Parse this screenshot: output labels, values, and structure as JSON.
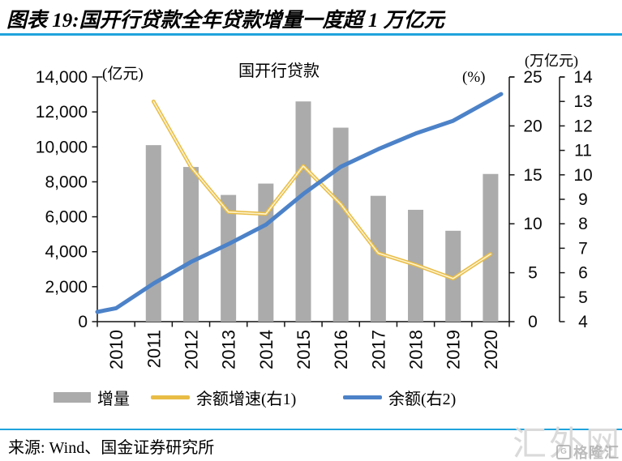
{
  "header": {
    "title": "图表 19:国开行贷款全年贷款增量一度超 1 万亿元"
  },
  "chart_data": {
    "type": "combo-bar-line",
    "title": "国开行贷款",
    "categories": [
      "2010",
      "2011",
      "2012",
      "2013",
      "2014",
      "2015",
      "2016",
      "2017",
      "2018",
      "2019",
      "2020"
    ],
    "series": [
      {
        "name": "增量",
        "type": "bar",
        "axis": "left",
        "unit": "亿元",
        "values": [
          null,
          10100,
          8850,
          7250,
          7900,
          12600,
          11100,
          7200,
          6400,
          5200,
          8450
        ]
      },
      {
        "name": "余额增速(右1)",
        "type": "line",
        "axis": "right1",
        "unit": "%",
        "values": [
          null,
          22.5,
          15.8,
          11.2,
          11.0,
          15.9,
          12.0,
          7.0,
          5.8,
          4.4,
          6.9
        ]
      },
      {
        "name": "余额(右2)",
        "type": "line",
        "axis": "right2",
        "unit": "万亿元",
        "values": [
          4.55,
          5.56,
          6.44,
          7.17,
          7.96,
          9.22,
          10.33,
          11.05,
          11.69,
          12.21,
          13.06
        ]
      }
    ],
    "axes": {
      "left": {
        "label": "(亿元)",
        "min": 0,
        "max": 14000,
        "step": 2000,
        "tick_labels": [
          "0",
          "2,000",
          "4,000",
          "6,000",
          "8,000",
          "10,000",
          "12,000",
          "14,000"
        ]
      },
      "right1": {
        "label": "(%)",
        "min": 0,
        "max": 25,
        "step": 5,
        "tick_labels": [
          "0",
          "5",
          "10",
          "15",
          "20",
          "25"
        ]
      },
      "right2": {
        "label": "(万亿元)",
        "min": 4,
        "max": 14,
        "step": 1,
        "tick_labels": [
          "4",
          "5",
          "6",
          "7",
          "8",
          "9",
          "10",
          "11",
          "12",
          "13",
          "14"
        ]
      }
    },
    "grid": false,
    "legend_position": "bottom"
  },
  "legend": {
    "items": [
      {
        "label": "增量",
        "swatch": "bar"
      },
      {
        "label": "余额增速(右1)",
        "swatch": "line"
      },
      {
        "label": "余额(右2)",
        "swatch": "line"
      }
    ]
  },
  "footer": {
    "source": "来源: Wind、国金证券研究所"
  },
  "watermark": {
    "text": "汇外网",
    "logo_text": "格隆汇",
    "logo_badge": "G"
  },
  "colors": {
    "accent_rule": "#1FA3DC",
    "bar": "#ABABAB",
    "growth_line": "#E8BC45",
    "growth_line_core": "#FCF1C9",
    "balance_line": "#4C82C8",
    "axis": "#141414",
    "text": "#0a0a0a",
    "watermark": "#DADADA",
    "logo": "#A8A8A8"
  }
}
